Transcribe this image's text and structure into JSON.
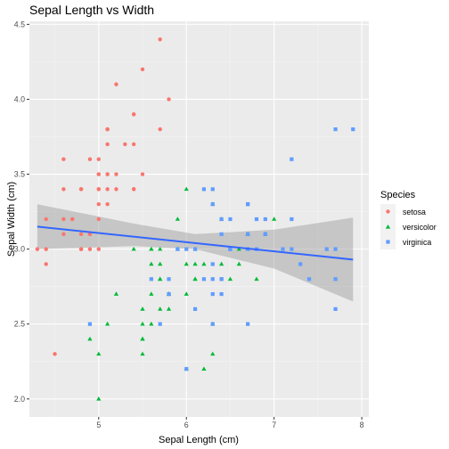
{
  "chart_data": {
    "type": "scatter",
    "title": "Sepal Length vs Width",
    "xlabel": "Sepal Length (cm)",
    "ylabel": "Sepal Width (cm)",
    "xlim": [
      4.21,
      8.08
    ],
    "ylim": [
      1.88,
      4.52
    ],
    "x_ticks": [
      5,
      6,
      7,
      8
    ],
    "y_ticks": [
      2.0,
      2.5,
      3.0,
      3.5,
      4.0,
      4.5
    ],
    "grid": true,
    "legend": {
      "title": "Species",
      "placement": "right",
      "entries": [
        {
          "label": "setosa",
          "color": "#F8766D",
          "shape": "circle"
        },
        {
          "label": "versicolor",
          "color": "#00BA38",
          "shape": "triangle"
        },
        {
          "label": "virginica",
          "color": "#619CFF",
          "shape": "square"
        }
      ]
    },
    "series": [
      {
        "name": "setosa",
        "color": "#F8766D",
        "shape": "circle",
        "points": [
          [
            5.1,
            3.5
          ],
          [
            4.9,
            3.0
          ],
          [
            4.7,
            3.2
          ],
          [
            4.6,
            3.1
          ],
          [
            5.0,
            3.6
          ],
          [
            5.4,
            3.9
          ],
          [
            4.6,
            3.4
          ],
          [
            5.0,
            3.4
          ],
          [
            4.4,
            2.9
          ],
          [
            4.9,
            3.1
          ],
          [
            5.4,
            3.7
          ],
          [
            4.8,
            3.4
          ],
          [
            4.8,
            3.0
          ],
          [
            4.3,
            3.0
          ],
          [
            5.8,
            4.0
          ],
          [
            5.7,
            4.4
          ],
          [
            5.4,
            3.9
          ],
          [
            5.1,
            3.5
          ],
          [
            5.7,
            3.8
          ],
          [
            5.1,
            3.8
          ],
          [
            5.4,
            3.4
          ],
          [
            5.1,
            3.7
          ],
          [
            4.6,
            3.6
          ],
          [
            5.1,
            3.3
          ],
          [
            4.8,
            3.4
          ],
          [
            5.0,
            3.0
          ],
          [
            5.0,
            3.4
          ],
          [
            5.2,
            3.5
          ],
          [
            5.2,
            3.4
          ],
          [
            4.7,
            3.2
          ],
          [
            4.8,
            3.1
          ],
          [
            5.4,
            3.4
          ],
          [
            5.2,
            4.1
          ],
          [
            5.5,
            4.2
          ],
          [
            4.9,
            3.1
          ],
          [
            5.0,
            3.2
          ],
          [
            5.5,
            3.5
          ],
          [
            4.9,
            3.6
          ],
          [
            4.4,
            3.0
          ],
          [
            5.1,
            3.4
          ],
          [
            5.0,
            3.5
          ],
          [
            4.5,
            2.3
          ],
          [
            4.4,
            3.2
          ],
          [
            5.0,
            3.5
          ],
          [
            5.1,
            3.8
          ],
          [
            4.8,
            3.0
          ],
          [
            5.1,
            3.8
          ],
          [
            4.6,
            3.2
          ],
          [
            5.3,
            3.7
          ],
          [
            5.0,
            3.3
          ]
        ]
      },
      {
        "name": "versicolor",
        "color": "#00BA38",
        "shape": "triangle",
        "points": [
          [
            7.0,
            3.2
          ],
          [
            6.4,
            3.2
          ],
          [
            6.9,
            3.1
          ],
          [
            5.5,
            2.3
          ],
          [
            6.5,
            2.8
          ],
          [
            5.7,
            2.8
          ],
          [
            6.3,
            3.3
          ],
          [
            4.9,
            2.4
          ],
          [
            6.6,
            2.9
          ],
          [
            5.2,
            2.7
          ],
          [
            5.0,
            2.0
          ],
          [
            5.9,
            3.0
          ],
          [
            6.0,
            2.2
          ],
          [
            6.1,
            2.9
          ],
          [
            5.6,
            2.9
          ],
          [
            6.7,
            3.1
          ],
          [
            5.6,
            3.0
          ],
          [
            5.8,
            2.7
          ],
          [
            6.2,
            2.2
          ],
          [
            5.6,
            2.5
          ],
          [
            5.9,
            3.2
          ],
          [
            6.1,
            2.8
          ],
          [
            6.3,
            2.5
          ],
          [
            6.1,
            2.8
          ],
          [
            6.4,
            2.9
          ],
          [
            6.6,
            3.0
          ],
          [
            6.8,
            2.8
          ],
          [
            6.7,
            3.0
          ],
          [
            6.0,
            2.9
          ],
          [
            5.7,
            2.6
          ],
          [
            5.5,
            2.4
          ],
          [
            5.5,
            2.4
          ],
          [
            5.8,
            2.7
          ],
          [
            6.0,
            2.7
          ],
          [
            5.4,
            3.0
          ],
          [
            6.0,
            3.4
          ],
          [
            6.7,
            3.1
          ],
          [
            6.3,
            2.3
          ],
          [
            5.6,
            3.0
          ],
          [
            5.5,
            2.5
          ],
          [
            5.5,
            2.6
          ],
          [
            6.1,
            3.0
          ],
          [
            5.8,
            2.6
          ],
          [
            5.0,
            2.3
          ],
          [
            5.6,
            2.7
          ],
          [
            5.7,
            3.0
          ],
          [
            5.7,
            2.9
          ],
          [
            6.2,
            2.9
          ],
          [
            5.1,
            2.5
          ],
          [
            5.7,
            2.8
          ]
        ]
      },
      {
        "name": "virginica",
        "color": "#619CFF",
        "shape": "square",
        "points": [
          [
            6.3,
            3.3
          ],
          [
            5.8,
            2.7
          ],
          [
            7.1,
            3.0
          ],
          [
            6.3,
            2.9
          ],
          [
            6.5,
            3.0
          ],
          [
            7.6,
            3.0
          ],
          [
            4.9,
            2.5
          ],
          [
            7.3,
            2.9
          ],
          [
            6.7,
            2.5
          ],
          [
            7.2,
            3.6
          ],
          [
            6.5,
            3.2
          ],
          [
            6.4,
            2.7
          ],
          [
            6.8,
            3.0
          ],
          [
            5.7,
            2.5
          ],
          [
            5.8,
            2.8
          ],
          [
            6.4,
            3.2
          ],
          [
            6.5,
            3.0
          ],
          [
            7.7,
            3.8
          ],
          [
            7.7,
            2.6
          ],
          [
            6.0,
            2.2
          ],
          [
            6.9,
            3.2
          ],
          [
            5.6,
            2.8
          ],
          [
            7.7,
            2.8
          ],
          [
            6.3,
            2.7
          ],
          [
            6.7,
            3.3
          ],
          [
            7.2,
            3.2
          ],
          [
            6.2,
            2.8
          ],
          [
            6.1,
            3.0
          ],
          [
            6.4,
            2.8
          ],
          [
            7.2,
            3.0
          ],
          [
            7.4,
            2.8
          ],
          [
            7.9,
            3.8
          ],
          [
            6.4,
            2.8
          ],
          [
            6.3,
            2.8
          ],
          [
            6.1,
            2.6
          ],
          [
            7.7,
            3.0
          ],
          [
            6.3,
            3.4
          ],
          [
            6.4,
            3.1
          ],
          [
            6.0,
            3.0
          ],
          [
            6.9,
            3.1
          ],
          [
            6.7,
            3.1
          ],
          [
            6.9,
            3.1
          ],
          [
            5.8,
            2.7
          ],
          [
            6.8,
            3.2
          ],
          [
            6.7,
            3.3
          ],
          [
            6.7,
            3.0
          ],
          [
            6.3,
            2.5
          ],
          [
            6.5,
            3.0
          ],
          [
            6.2,
            3.4
          ],
          [
            5.9,
            3.0
          ]
        ]
      }
    ],
    "trend_line": {
      "color": "#3366FF",
      "band_color": "#999999",
      "points": [
        [
          4.3,
          3.15
        ],
        [
          7.9,
          2.93
        ]
      ],
      "band_upper": [
        [
          4.3,
          3.3
        ],
        [
          5.4,
          3.17
        ],
        [
          6.1,
          3.1
        ],
        [
          7.0,
          3.13
        ],
        [
          7.9,
          3.21
        ]
      ],
      "band_lower": [
        [
          4.3,
          3.0
        ],
        [
          5.4,
          3.02
        ],
        [
          6.1,
          3.0
        ],
        [
          7.0,
          2.87
        ],
        [
          7.9,
          2.65
        ]
      ]
    }
  }
}
